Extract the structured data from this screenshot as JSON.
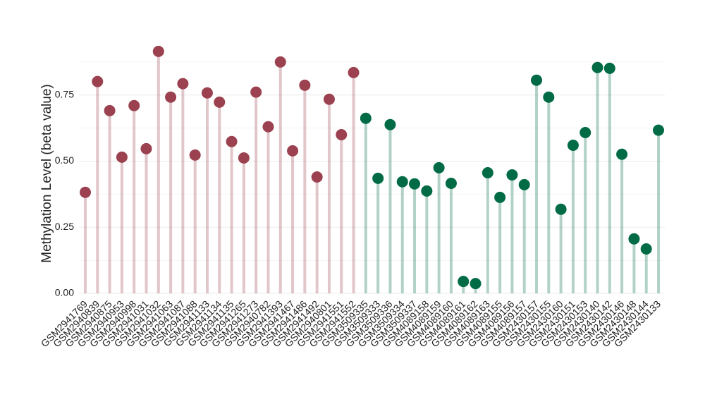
{
  "chart_data": {
    "type": "lollipop",
    "y_label": "Methylation Level (beta value)",
    "categories": [
      "GSM2941769",
      "GSM2940839",
      "GSM2940875",
      "GSM2940953",
      "GSM2940998",
      "GSM2941031",
      "GSM2941032",
      "GSM2941063",
      "GSM2941087",
      "GSM2941088",
      "GSM2941133",
      "GSM2941134",
      "GSM2941135",
      "GSM2941265",
      "GSM2941273",
      "GSM2940782",
      "GSM2941393",
      "GSM2941467",
      "GSM2941486",
      "GSM2941492",
      "GSM2940801",
      "GSM2941551",
      "GSM2941552",
      "GSM3509335",
      "GSM3509333",
      "GSM3509336",
      "GSM3509334",
      "GSM3509337",
      "GSM4089158",
      "GSM4089159",
      "GSM4089160",
      "GSM4089161",
      "GSM4089162",
      "GSM4089163",
      "GSM4089155",
      "GSM4089156",
      "GSM4089157",
      "GSM2430157",
      "GSM2430155",
      "GSM2430160",
      "GSM2430151",
      "GSM2430153",
      "GSM2430140",
      "GSM2430142",
      "GSM2430146",
      "GSM2430148",
      "GSM2430144",
      "GSM2430133"
    ],
    "values": [
      0.382,
      0.801,
      0.691,
      0.515,
      0.71,
      0.547,
      0.915,
      0.742,
      0.793,
      0.523,
      0.758,
      0.723,
      0.574,
      0.512,
      0.761,
      0.63,
      0.875,
      0.539,
      0.787,
      0.44,
      0.734,
      0.6,
      0.835,
      0.662,
      0.435,
      0.638,
      0.422,
      0.414,
      0.387,
      0.475,
      0.416,
      0.045,
      0.037,
      0.456,
      0.363,
      0.448,
      0.411,
      0.806,
      0.742,
      0.318,
      0.56,
      0.608,
      0.854,
      0.851,
      0.526,
      0.206,
      0.168,
      0.617
    ],
    "colors": [
      "#9b4150",
      "#9b4150",
      "#9b4150",
      "#9b4150",
      "#9b4150",
      "#9b4150",
      "#9b4150",
      "#9b4150",
      "#9b4150",
      "#9b4150",
      "#9b4150",
      "#9b4150",
      "#9b4150",
      "#9b4150",
      "#9b4150",
      "#9b4150",
      "#9b4150",
      "#9b4150",
      "#9b4150",
      "#9b4150",
      "#9b4150",
      "#9b4150",
      "#9b4150",
      "#006b45",
      "#006b45",
      "#006b45",
      "#006b45",
      "#006b45",
      "#006b45",
      "#006b45",
      "#006b45",
      "#006b45",
      "#006b45",
      "#006b45",
      "#006b45",
      "#006b45",
      "#006b45",
      "#006b45",
      "#006b45",
      "#006b45",
      "#006b45",
      "#006b45",
      "#006b45",
      "#006b45",
      "#006b45",
      "#006b45",
      "#006b45",
      "#006b45"
    ],
    "ylim": [
      0,
      0.96
    ],
    "yticks": [
      {
        "value": 0,
        "label": "0.00"
      },
      {
        "value": 0.25,
        "label": "0.25"
      },
      {
        "value": 0.5,
        "label": "0.50"
      },
      {
        "value": 0.75,
        "label": "0.75"
      }
    ],
    "yminorticks": [
      0.125,
      0.375,
      0.625,
      0.875
    ],
    "grid": true
  }
}
